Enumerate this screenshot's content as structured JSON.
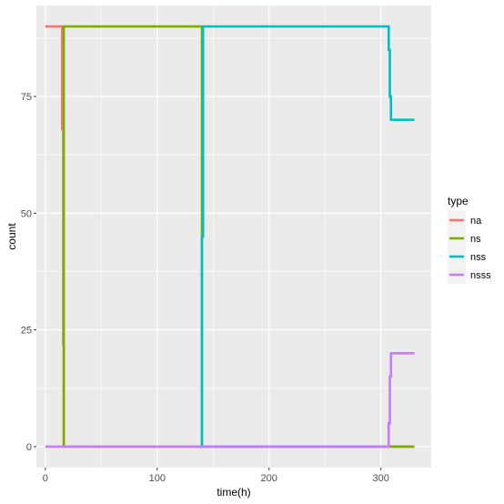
{
  "chart_data": {
    "type": "line",
    "step": true,
    "xlabel": "time(h)",
    "ylabel": "count",
    "xlim": [
      -8,
      345
    ],
    "ylim": [
      -4.5,
      94.5
    ],
    "x_ticks": [
      0,
      100,
      200,
      300
    ],
    "x_tick_labels": [
      "0",
      "100",
      "200",
      "300"
    ],
    "y_ticks": [
      0,
      25,
      50,
      75
    ],
    "y_tick_labels": [
      "0",
      "25",
      "50",
      "75"
    ],
    "grid": true,
    "legend": {
      "title": "type",
      "position": "right"
    },
    "series": [
      {
        "name": "na",
        "color": "#F8766D",
        "points": [
          [
            0,
            90
          ],
          [
            15,
            90
          ],
          [
            15,
            68
          ],
          [
            16,
            68
          ],
          [
            16,
            22
          ],
          [
            16.5,
            22
          ],
          [
            16.5,
            0
          ],
          [
            330,
            0
          ]
        ]
      },
      {
        "name": "ns",
        "color": "#7CAE00",
        "points": [
          [
            16.5,
            0
          ],
          [
            16.5,
            90
          ],
          [
            140,
            90
          ],
          [
            140,
            0
          ],
          [
            330,
            0
          ]
        ]
      },
      {
        "name": "nss",
        "color": "#00BFC4",
        "points": [
          [
            140,
            0
          ],
          [
            140,
            45
          ],
          [
            141,
            45
          ],
          [
            141,
            90
          ],
          [
            307,
            90
          ],
          [
            307,
            85
          ],
          [
            308,
            85
          ],
          [
            308,
            75
          ],
          [
            309,
            75
          ],
          [
            309,
            70
          ],
          [
            330,
            70
          ]
        ]
      },
      {
        "name": "nsss",
        "color": "#C77CFF",
        "points": [
          [
            0,
            0
          ],
          [
            307,
            0
          ],
          [
            307,
            5
          ],
          [
            308,
            5
          ],
          [
            308,
            15
          ],
          [
            309,
            15
          ],
          [
            309,
            20
          ],
          [
            330,
            20
          ]
        ]
      }
    ]
  }
}
